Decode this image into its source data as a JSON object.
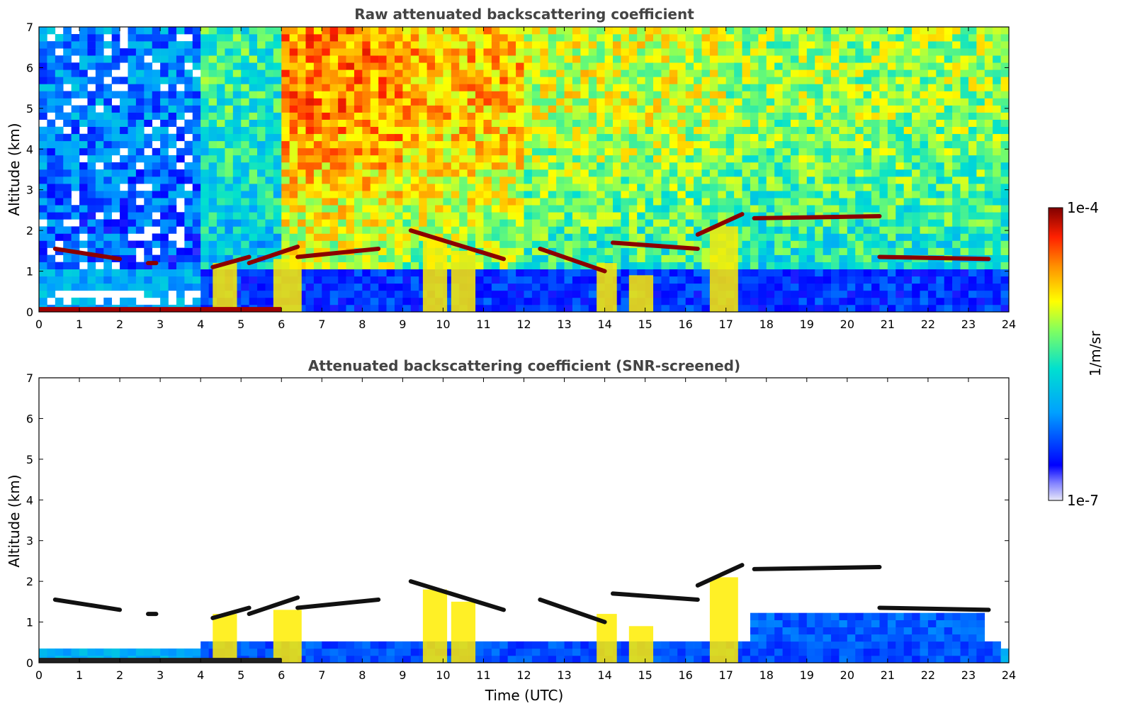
{
  "chart_data": [
    {
      "type": "heatmap",
      "title": "Raw attenuated backscattering coefficient",
      "xlabel": "",
      "ylabel": "Altitude (km)",
      "xlim": [
        0,
        24
      ],
      "ylim": [
        0,
        7
      ],
      "x_ticks": [
        "0",
        "1",
        "2",
        "3",
        "4",
        "5",
        "6",
        "7",
        "8",
        "9",
        "10",
        "11",
        "12",
        "13",
        "14",
        "15",
        "16",
        "17",
        "18",
        "19",
        "20",
        "21",
        "22",
        "23",
        "24"
      ],
      "y_ticks": [
        "0",
        "1",
        "2",
        "3",
        "4",
        "5",
        "6",
        "7"
      ],
      "grid": false,
      "cloud_base_layers": [
        {
          "x": [
            0.4,
            2.0
          ],
          "y": [
            1.55,
            1.3
          ]
        },
        {
          "x": [
            2.7,
            2.9
          ],
          "y": [
            1.2,
            1.2
          ]
        },
        {
          "x": [
            4.3,
            5.2
          ],
          "y": [
            1.1,
            1.35
          ]
        },
        {
          "x": [
            5.2,
            6.4
          ],
          "y": [
            1.2,
            1.6
          ]
        },
        {
          "x": [
            6.4,
            8.4
          ],
          "y": [
            1.35,
            1.55
          ]
        },
        {
          "x": [
            9.2,
            11.5
          ],
          "y": [
            2.0,
            1.3
          ]
        },
        {
          "x": [
            12.4,
            14.0
          ],
          "y": [
            1.55,
            1.0
          ]
        },
        {
          "x": [
            14.2,
            16.3
          ],
          "y": [
            1.7,
            1.55
          ]
        },
        {
          "x": [
            16.3,
            17.4
          ],
          "y": [
            1.9,
            2.4
          ]
        },
        {
          "x": [
            17.7,
            20.8
          ],
          "y": [
            2.3,
            2.35
          ]
        },
        {
          "x": [
            20.8,
            23.5
          ],
          "y": [
            1.35,
            1.3
          ]
        }
      ]
    },
    {
      "type": "heatmap",
      "title": "Attenuated backscattering coefficient (SNR-screened)",
      "xlabel": "Time (UTC)",
      "ylabel": "Altitude (km)",
      "xlim": [
        0,
        24
      ],
      "ylim": [
        0,
        7
      ],
      "x_ticks": [
        "0",
        "1",
        "2",
        "3",
        "4",
        "5",
        "6",
        "7",
        "8",
        "9",
        "10",
        "11",
        "12",
        "13",
        "14",
        "15",
        "16",
        "17",
        "18",
        "19",
        "20",
        "21",
        "22",
        "23",
        "24"
      ],
      "y_ticks": [
        "0",
        "1",
        "2",
        "3",
        "4",
        "5",
        "6",
        "7"
      ],
      "grid": false
    }
  ],
  "colorbar": {
    "label": "1/m/sr",
    "max_label": "1e-4",
    "min_label": "1e-7",
    "colormap": [
      "#e8e8f8",
      "#0000ff",
      "#00a0ff",
      "#00e0e0",
      "#80ff80",
      "#ffff00",
      "#ff8000",
      "#ff0000",
      "#800000"
    ]
  }
}
